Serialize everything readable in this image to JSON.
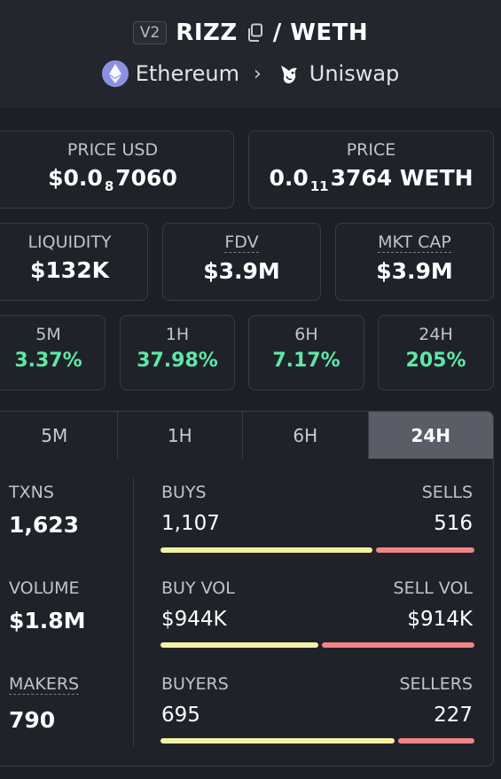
{
  "header": {
    "version": "V2",
    "base_symbol": "RIZZ",
    "separator": "/",
    "quote_symbol": "WETH",
    "chain": "Ethereum",
    "dex": "Uniswap",
    "icons": [
      "copy-icon",
      "ethereum-icon",
      "chevron-right-icon",
      "uniswap-icon"
    ]
  },
  "price_usd": {
    "label": "PRICE USD",
    "prefix": "$0.0",
    "zeros": "8",
    "digits": "7060"
  },
  "price_native": {
    "label": "PRICE",
    "prefix": "0.0",
    "zeros": "11",
    "digits": "3764",
    "unit": "WETH"
  },
  "metrics": [
    {
      "label": "LIQUIDITY",
      "value": "$132K"
    },
    {
      "label": "FDV",
      "value": "$3.9M"
    },
    {
      "label": "MKT CAP",
      "value": "$3.9M"
    }
  ],
  "changes": [
    {
      "label": "5M",
      "value": "3.37%"
    },
    {
      "label": "1H",
      "value": "37.98%"
    },
    {
      "label": "6H",
      "value": "7.17%"
    },
    {
      "label": "24H",
      "value": "205%"
    }
  ],
  "tabs": [
    "5M",
    "1H",
    "6H",
    "24H"
  ],
  "active_tab": "24H",
  "stats": {
    "txns_label": "TXNS",
    "txns": "1,623",
    "volume_label": "VOLUME",
    "volume": "$1.8M",
    "makers_label": "MAKERS",
    "makers": "790",
    "buys_label": "BUYS",
    "buys": "1,107",
    "sells_label": "SELLS",
    "sells": "516",
    "buy_vol_label": "BUY VOL",
    "buy_vol": "$944K",
    "sell_vol_label": "SELL VOL",
    "sell_vol": "$914K",
    "buyers_label": "BUYERS",
    "buyers": "695",
    "sellers_label": "SELLERS",
    "sellers": "227",
    "buy_ratio": 0.682,
    "buy_vol_ratio": 0.508,
    "buyer_ratio": 0.754
  },
  "colors": {
    "positive": "#5fe7a6",
    "buy_bar": "#f4f3a4",
    "sell_bar": "#f08585",
    "active_tab": "#5a5c66"
  }
}
